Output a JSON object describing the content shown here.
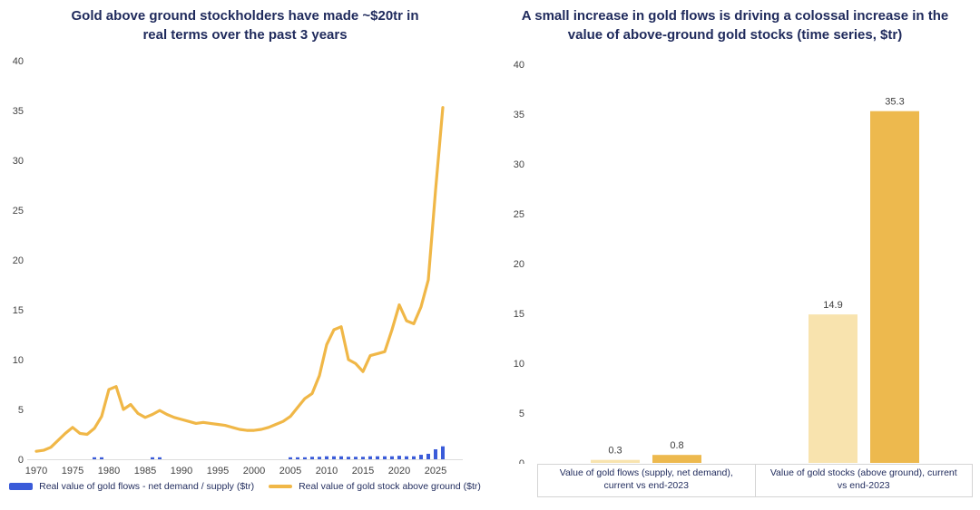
{
  "colors": {
    "title_navy": "#1f2a5c",
    "axis_text": "#424242",
    "axis_line": "#dcdcdc",
    "flow_blue": "#3a5bd9",
    "stock_gold_line": "#f0b747",
    "bar_light": "#f8e3ae",
    "bar_gold": "#edb94e",
    "cell_border": "#d4d4d4"
  },
  "chart_data": [
    {
      "type": "line",
      "title": "Gold above ground stockholders have made ~$20tr in real terms over the past 3 years",
      "x": [
        1970,
        1971,
        1972,
        1973,
        1974,
        1975,
        1976,
        1977,
        1978,
        1979,
        1980,
        1981,
        1982,
        1983,
        1984,
        1985,
        1986,
        1987,
        1988,
        1989,
        1990,
        1991,
        1992,
        1993,
        1994,
        1995,
        1996,
        1997,
        1998,
        1999,
        2000,
        2001,
        2002,
        2003,
        2004,
        2005,
        2006,
        2007,
        2008,
        2009,
        2010,
        2011,
        2012,
        2013,
        2014,
        2015,
        2016,
        2017,
        2018,
        2019,
        2020,
        2021,
        2022,
        2023,
        2024,
        2025,
        2026
      ],
      "series": [
        {
          "name": "Real value of gold flows - net demand / supply ($tr)",
          "type": "bar",
          "color": "#3a5bd9",
          "values": [
            0,
            0,
            0,
            0,
            0,
            0,
            0,
            0,
            0.2,
            0.2,
            0,
            0,
            0,
            0,
            0,
            0,
            0.2,
            0.2,
            0,
            0,
            0,
            0,
            0,
            0,
            0,
            0,
            0,
            0,
            0,
            0,
            0,
            0,
            0,
            0,
            0,
            0.2,
            0.2,
            0.2,
            0.25,
            0.25,
            0.3,
            0.3,
            0.3,
            0.25,
            0.25,
            0.25,
            0.3,
            0.3,
            0.3,
            0.3,
            0.35,
            0.3,
            0.3,
            0.45,
            0.55,
            1.0,
            1.3
          ]
        },
        {
          "name": "Real value of gold stock above ground ($tr)",
          "type": "line",
          "color": "#f0b747",
          "values": [
            0.8,
            0.9,
            1.2,
            1.9,
            2.6,
            3.2,
            2.6,
            2.5,
            3.1,
            4.3,
            7.0,
            7.3,
            5.0,
            5.5,
            4.6,
            4.2,
            4.5,
            4.9,
            4.5,
            4.2,
            4.0,
            3.8,
            3.6,
            3.7,
            3.6,
            3.5,
            3.4,
            3.2,
            3.0,
            2.9,
            2.9,
            3.0,
            3.2,
            3.5,
            3.8,
            4.3,
            5.2,
            6.1,
            6.6,
            8.4,
            11.5,
            13.0,
            13.3,
            10.0,
            9.6,
            8.8,
            10.4,
            10.6,
            10.8,
            13.0,
            15.5,
            13.9,
            13.6,
            15.3,
            18.0,
            27.0,
            35.3
          ]
        }
      ],
      "xticks": [
        1970,
        1975,
        1980,
        1985,
        1990,
        1995,
        2000,
        2005,
        2010,
        2015,
        2020,
        2025
      ],
      "yticks": [
        0,
        5,
        10,
        15,
        20,
        25,
        30,
        35,
        40
      ],
      "ylim": [
        0,
        40
      ],
      "grid": false,
      "legend_position": "bottom"
    },
    {
      "type": "bar",
      "title": "A small increase in gold flows is driving a colossal increase in the value of above-ground gold stocks (time series, $tr)",
      "categories": [
        "Value of gold flows (supply, net demand), current vs end-2023",
        "Value of gold stocks (above ground), current vs end-2023"
      ],
      "series": [
        {
          "name": "lighter-bar",
          "color": "#f8e3ae",
          "values": [
            0.3,
            14.9
          ]
        },
        {
          "name": "darker-bar",
          "color": "#edb94e",
          "values": [
            0.8,
            35.3
          ]
        }
      ],
      "data_labels": [
        "0.3",
        "0.8",
        "14.9",
        "35.3"
      ],
      "yticks": [
        0,
        5,
        10,
        15,
        20,
        25,
        30,
        35,
        40
      ],
      "ylim": [
        0,
        40
      ],
      "grid": false,
      "legend_position": "none"
    }
  ]
}
